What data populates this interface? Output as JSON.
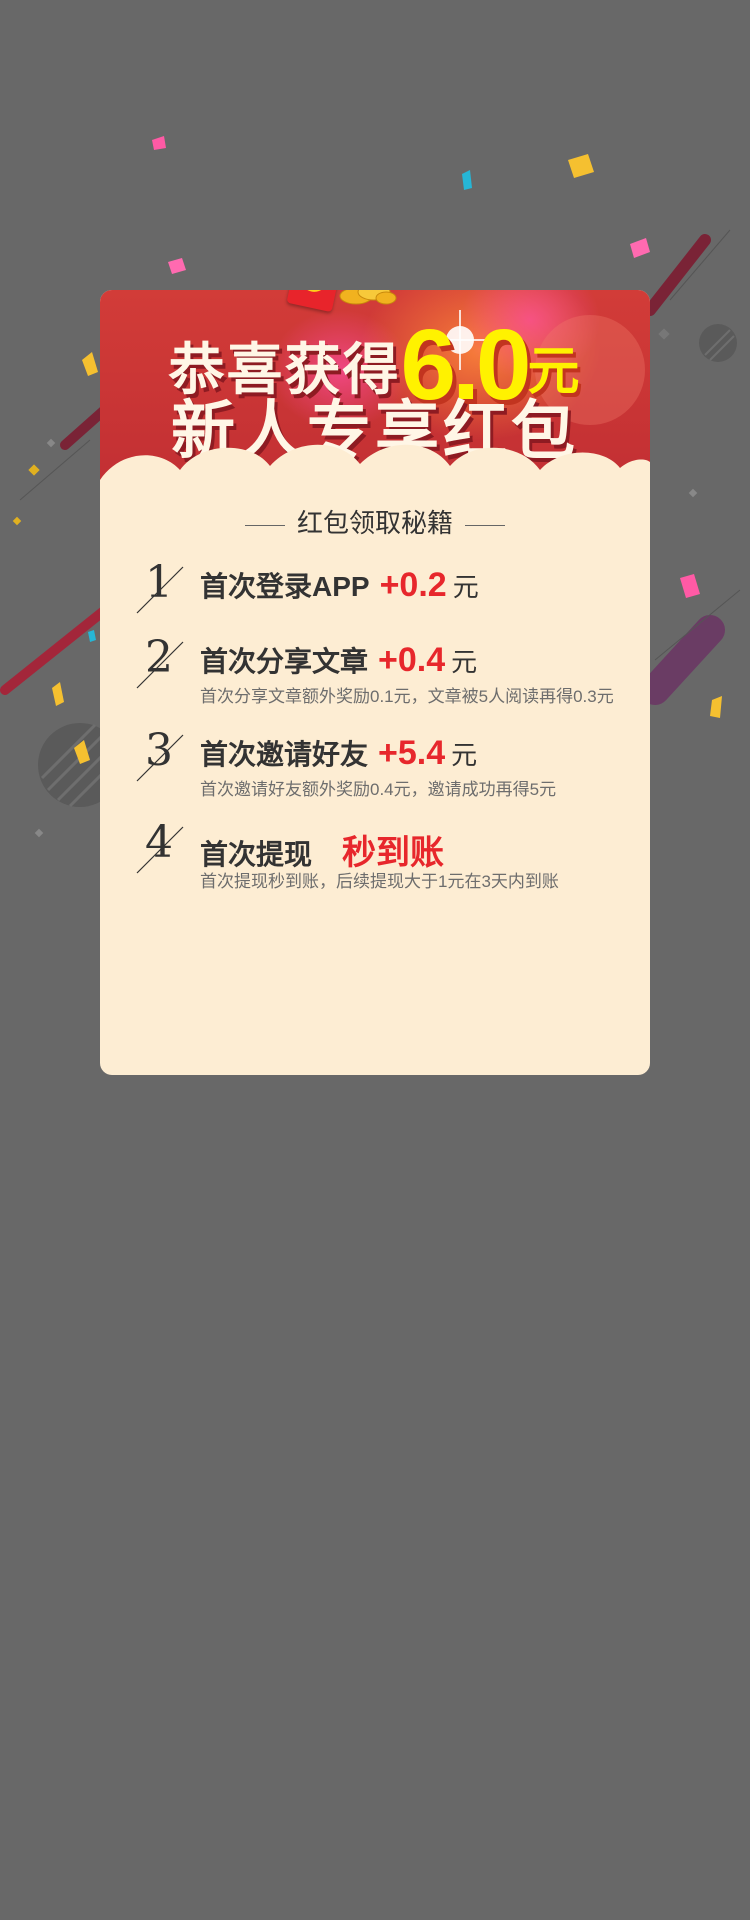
{
  "banner": {
    "title_prefix": "恭喜获得",
    "amount": "6.0",
    "amount_unit": "元",
    "subtitle": "新人专享红包",
    "packet_symbol": "¥"
  },
  "guide": {
    "title": "红包领取秘籍",
    "items": [
      {
        "number": "1",
        "title": "首次登录APP",
        "bonus": "+0.2",
        "unit": "元",
        "desc": ""
      },
      {
        "number": "2",
        "title": "首次分享文章",
        "bonus": "+0.4",
        "unit": "元",
        "desc": "首次分享文章额外奖励0.1元，文章被5人阅读再得0.3元"
      },
      {
        "number": "3",
        "title": "首次邀请好友",
        "bonus": "+5.4",
        "unit": "元",
        "desc": "首次邀请好友额外奖励0.4元，邀请成功再得5元"
      },
      {
        "number": "4",
        "title": "首次提现",
        "bonus": "秒到账",
        "unit": "",
        "desc": "首次提现秒到账，后续提现大于1元在3天内到账"
      }
    ]
  },
  "colors": {
    "background": "#686868",
    "card": "#fdedd3",
    "header_red": "#c9353a",
    "accent_red": "#e7272c",
    "amount_yellow": "#fff200"
  },
  "icons": [
    "red-packet-icon",
    "coins-icon",
    "confetti-decoration"
  ]
}
